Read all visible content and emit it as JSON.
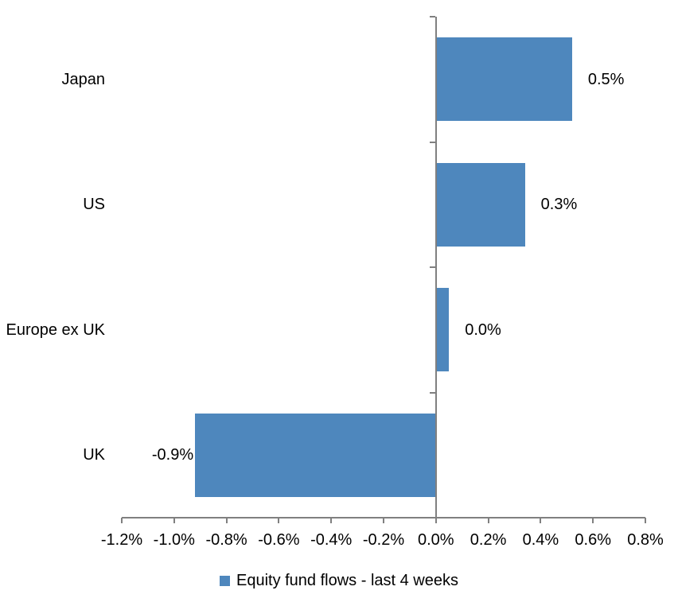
{
  "chart_data": {
    "type": "bar",
    "orientation": "horizontal",
    "title": "",
    "categories": [
      "Japan",
      "US",
      "Europe ex UK",
      "UK"
    ],
    "values": [
      0.5,
      0.3,
      0.0,
      -0.9
    ],
    "bar_values_precise": [
      0.52,
      0.34,
      0.05,
      -0.92
    ],
    "value_labels": [
      "0.5%",
      "0.3%",
      "0.0%",
      "-0.9%"
    ],
    "xlim": [
      -1.2,
      0.8
    ],
    "x_tick_step": 0.2,
    "x_tick_labels": [
      "-1.2%",
      "-1.0%",
      "-0.8%",
      "-0.6%",
      "-0.4%",
      "-0.2%",
      "0.0%",
      "0.2%",
      "0.4%",
      "0.6%",
      "0.8%"
    ],
    "grid": false,
    "legend_position": "bottom",
    "legend": [
      {
        "label": "Equity fund flows - last 4 weeks",
        "color": "#4e87bd"
      }
    ],
    "colors": {
      "bar": "#4e87bd",
      "axis": "#808080",
      "text": "#000000",
      "background": "#ffffff"
    }
  }
}
